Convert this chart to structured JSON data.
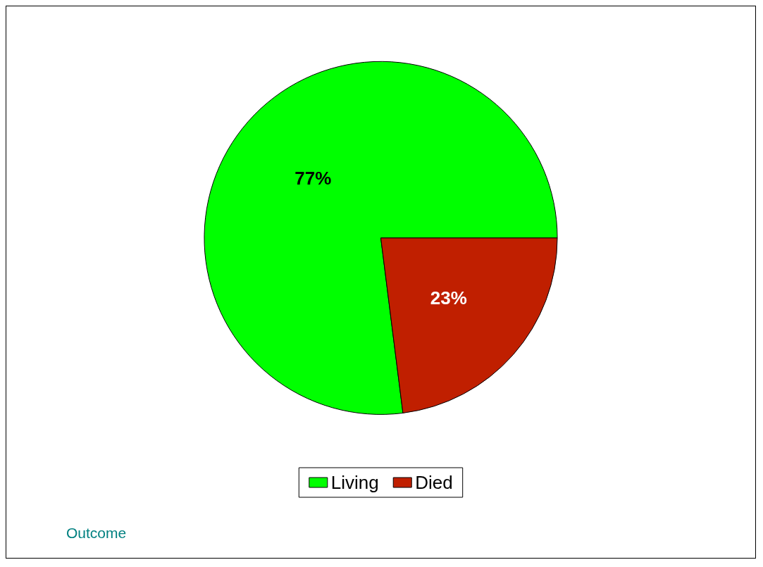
{
  "chart_data": {
    "type": "pie",
    "categories": [
      "Living",
      "Died"
    ],
    "values": [
      77,
      23
    ],
    "colors": [
      "#00ff00",
      "#c01f00"
    ],
    "value_labels": [
      "77%",
      "23%"
    ],
    "legend": "bottom",
    "annotations": [
      "Outcome"
    ]
  }
}
